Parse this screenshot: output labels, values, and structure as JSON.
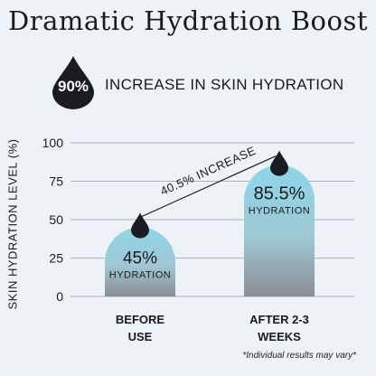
{
  "title": "Dramatic Hydration Boost",
  "stat": {
    "value": "90%",
    "label": "INCREASE IN SKIN HYDRATION"
  },
  "footnote": "*Individual results may vary*",
  "colors": {
    "bar_top": "#8dd6e8",
    "bar_bottom": "#8a8d92",
    "drop": "#1a1c22",
    "grid": "#a9b3ba",
    "text": "#1a1a1a"
  },
  "chart_data": {
    "type": "bar",
    "ylabel": "SKIN HYDRATION LEVEL (%)",
    "ylim": [
      0,
      100
    ],
    "yticks": [
      "0",
      "25",
      "50",
      "75",
      "100"
    ],
    "grid": true,
    "categories": [
      {
        "line1": "BEFORE",
        "line2": "USE"
      },
      {
        "line1": "AFTER 2-3",
        "line2": "WEEKS"
      }
    ],
    "values": [
      45,
      85.5
    ],
    "value_labels": [
      "45%",
      "85.5%"
    ],
    "unit_labels": [
      "HYDRATION",
      "HYDRATION"
    ],
    "annotation": "40.5% INCREASE"
  }
}
